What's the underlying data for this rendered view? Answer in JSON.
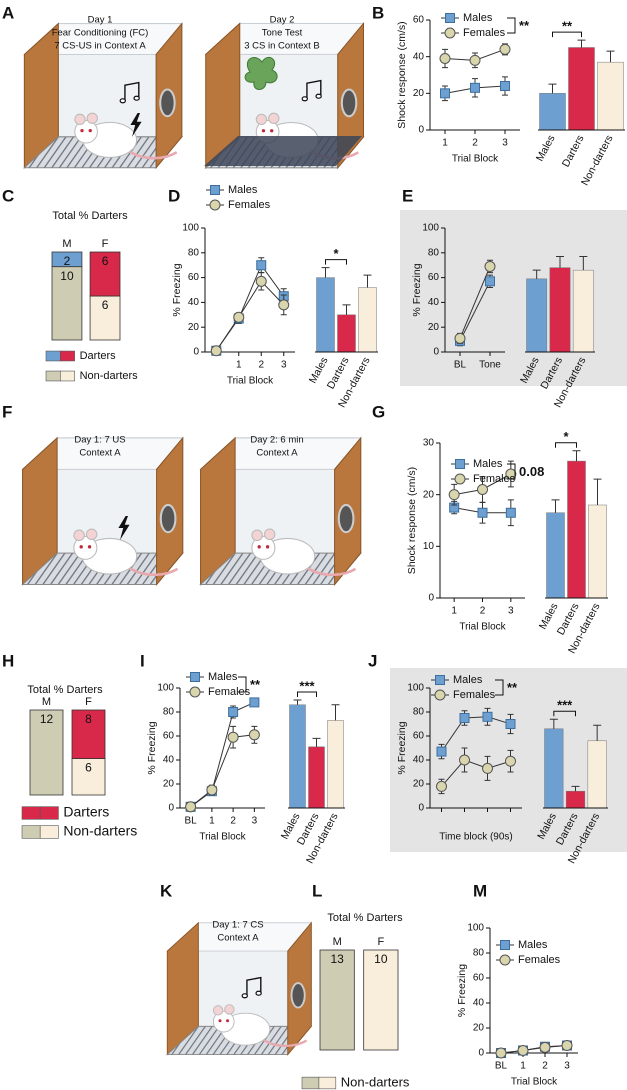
{
  "panel_labels": [
    "A",
    "B",
    "C",
    "D",
    "E",
    "F",
    "G",
    "H",
    "I",
    "J",
    "K",
    "L",
    "M"
  ],
  "schematics": [
    {
      "lines": [
        "Day 1",
        "Fear Conditioning (FC)",
        "7 CS-US in Context A"
      ]
    },
    {
      "lines": [
        "Day 2",
        "Tone Test",
        "3 CS in Context B"
      ]
    },
    {
      "lines": [
        "Day 1: 7 US",
        "Context A"
      ]
    },
    {
      "lines": [
        "Day 2: 6 min",
        "Context A"
      ]
    },
    {
      "lines": [
        "Day 1: 7 CS",
        "Context A"
      ]
    }
  ],
  "chart_data": [
    {
      "type": "line",
      "categories": [
        "1",
        "2",
        "3"
      ],
      "xlabel": "Trial Block",
      "ylabel": "Shock response (cm/s)",
      "ylim": [
        0,
        60
      ],
      "yticks": [
        0,
        20,
        40,
        60
      ],
      "series": [
        {
          "name": "Males",
          "color": "#6d9fd1",
          "marker": "square",
          "values": [
            20,
            23,
            24
          ],
          "errors": [
            4,
            5,
            5
          ]
        },
        {
          "name": "Females",
          "color": "#d9d6ae",
          "marker": "circle",
          "values": [
            39,
            38,
            44
          ],
          "errors": [
            5,
            4,
            3
          ]
        }
      ],
      "annotations": [
        {
          "text": "**"
        }
      ]
    },
    {
      "type": "bar",
      "categories": [
        "Males",
        "Darters",
        "Non-darters"
      ],
      "values": [
        20,
        45,
        37
      ],
      "errors": [
        5,
        4,
        6
      ],
      "colors": [
        "#6d9fd1",
        "#d8294a",
        "#f8eedb"
      ],
      "ylim": [
        0,
        60
      ],
      "annotations": [
        {
          "text": "**"
        }
      ]
    },
    {
      "type": "stacked_bar",
      "title": "Total % Darters",
      "categories": [
        "M",
        "F"
      ],
      "series": [
        {
          "name": "Darters",
          "colors": [
            "#6d9fd1",
            "#d8294a"
          ],
          "values": [
            2,
            6
          ]
        },
        {
          "name": "Non-darters",
          "colors": [
            "#cfccb4",
            "#f8eedb"
          ],
          "values": [
            10,
            6
          ]
        }
      ]
    },
    {
      "type": "line",
      "categories": [
        null,
        "1",
        "2",
        "3"
      ],
      "xlabel": "Trial Block",
      "ylabel": "% Freezing",
      "ylim": [
        0,
        100
      ],
      "yticks": [
        0,
        20,
        40,
        60,
        80,
        100
      ],
      "series": [
        {
          "name": "Males",
          "color": "#6d9fd1",
          "marker": "square",
          "values": [
            1,
            27,
            70,
            45
          ],
          "errors": [
            1,
            4,
            6,
            6
          ]
        },
        {
          "name": "Females",
          "color": "#d9d6ae",
          "marker": "circle",
          "values": [
            1,
            28,
            57,
            38
          ],
          "errors": [
            1,
            3,
            7,
            8
          ]
        }
      ]
    },
    {
      "type": "bar",
      "categories": [
        "Males",
        "Darters",
        "Non-darters"
      ],
      "values": [
        60,
        30,
        52
      ],
      "errors": [
        8,
        8,
        10
      ],
      "colors": [
        "#6d9fd1",
        "#d8294a",
        "#f8eedb"
      ],
      "ylim": [
        0,
        100
      ],
      "annotations": [
        {
          "text": "*"
        }
      ]
    },
    {
      "type": "line",
      "categories": [
        "BL",
        "Tone"
      ],
      "ylabel": "% Freezing",
      "ylim": [
        0,
        100
      ],
      "yticks": [
        0,
        20,
        40,
        60,
        80,
        100
      ],
      "series": [
        {
          "color": "#6d9fd1",
          "marker": "square",
          "values": [
            9,
            57
          ],
          "errors": [
            4,
            5
          ]
        },
        {
          "color": "#d9d6ae",
          "marker": "circle",
          "values": [
            11,
            69
          ],
          "errors": [
            4,
            5
          ]
        }
      ]
    },
    {
      "type": "bar",
      "categories": [
        "Males",
        "Darters",
        "Non-darters"
      ],
      "values": [
        59,
        68,
        66
      ],
      "errors": [
        7,
        9,
        11
      ],
      "colors": [
        "#6d9fd1",
        "#d8294a",
        "#f8eedb"
      ],
      "ylim": [
        0,
        100
      ]
    },
    {
      "type": "line",
      "categories": [
        "1",
        "2",
        "3"
      ],
      "xlabel": "Trial Block",
      "ylabel": "Shock response (cm/s)",
      "ylim": [
        0,
        30
      ],
      "yticks": [
        0,
        10,
        20,
        30
      ],
      "series": [
        {
          "name": "Males",
          "color": "#6d9fd1",
          "marker": "square",
          "values": [
            17.5,
            16.5,
            16.5
          ],
          "errors": [
            1.2,
            2,
            2.5
          ]
        },
        {
          "name": "Females",
          "color": "#d9d6ae",
          "marker": "circle",
          "values": [
            20,
            21,
            24
          ],
          "errors": [
            2,
            2.5,
            2.5
          ]
        }
      ],
      "annotations": [
        {
          "text": "0.08"
        }
      ]
    },
    {
      "type": "bar",
      "categories": [
        "Males",
        "Darters",
        "Non-darters"
      ],
      "values": [
        16.5,
        26.5,
        18
      ],
      "errors": [
        2.5,
        2,
        5
      ],
      "colors": [
        "#6d9fd1",
        "#d8294a",
        "#f8eedb"
      ],
      "ylim": [
        0,
        30
      ],
      "annotations": [
        {
          "text": "*"
        }
      ]
    },
    {
      "type": "stacked_bar",
      "title": "Total % Darters",
      "categories": [
        "M",
        "F"
      ],
      "series": [
        {
          "name": "Darters",
          "colors": [
            "#d8294a",
            "#d8294a"
          ],
          "values": [
            null,
            8
          ]
        },
        {
          "name": "Non-darters",
          "colors": [
            "#cfccb4",
            "#f8eedb"
          ],
          "values": [
            12,
            6
          ]
        }
      ]
    },
    {
      "type": "line",
      "categories": [
        "BL",
        "1",
        "2",
        "3"
      ],
      "xlabel": "Trial Block",
      "ylabel": "% Freezing",
      "ylim": [
        0,
        100
      ],
      "yticks": [
        0,
        20,
        40,
        60,
        80,
        100
      ],
      "series": [
        {
          "name": "Males",
          "color": "#6d9fd1",
          "marker": "square",
          "values": [
            1,
            14,
            80,
            88
          ],
          "errors": [
            1,
            3,
            5,
            2
          ]
        },
        {
          "name": "Females",
          "color": "#d9d6ae",
          "marker": "circle",
          "values": [
            1,
            15,
            59,
            61
          ],
          "errors": [
            1,
            4,
            9,
            7
          ]
        }
      ],
      "annotations": [
        {
          "text": "**"
        }
      ]
    },
    {
      "type": "bar",
      "categories": [
        "Males",
        "Darters",
        "Non-darters"
      ],
      "values": [
        86,
        51,
        73
      ],
      "errors": [
        4,
        7,
        13
      ],
      "colors": [
        "#6d9fd1",
        "#d8294a",
        "#f8eedb"
      ],
      "ylim": [
        0,
        100
      ],
      "annotations": [
        {
          "text": "***"
        }
      ]
    },
    {
      "type": "line",
      "categories": [
        null,
        null,
        null,
        null
      ],
      "xlabel": "Time block (90s)",
      "ylabel": "% Freezing",
      "ylim": [
        0,
        100
      ],
      "yticks": [
        0,
        20,
        40,
        60,
        80,
        100
      ],
      "series": [
        {
          "name": "Males",
          "color": "#6d9fd1",
          "marker": "square",
          "values": [
            47,
            75,
            76,
            70
          ],
          "errors": [
            6,
            6,
            7,
            8
          ]
        },
        {
          "name": "Females",
          "color": "#d9d6ae",
          "marker": "circle",
          "values": [
            18,
            40,
            33,
            39
          ],
          "errors": [
            6,
            10,
            10,
            9
          ]
        }
      ],
      "annotations": [
        {
          "text": "**"
        }
      ]
    },
    {
      "type": "bar",
      "categories": [
        "Males",
        "Darters",
        "Non-darters"
      ],
      "values": [
        66,
        14,
        56
      ],
      "errors": [
        8,
        4,
        13
      ],
      "colors": [
        "#6d9fd1",
        "#d8294a",
        "#f8eedb"
      ],
      "ylim": [
        0,
        100
      ],
      "annotations": [
        {
          "text": "***"
        }
      ]
    },
    {
      "type": "stacked_bar",
      "title": "Total % Darters",
      "categories": [
        "M",
        "F"
      ],
      "series": [
        {
          "name": "Non-darters",
          "colors": [
            "#cfccb4",
            "#f8eedb"
          ],
          "values": [
            13,
            10
          ]
        }
      ]
    },
    {
      "type": "line",
      "categories": [
        "BL",
        "1",
        "2",
        "3"
      ],
      "xlabel": "Trial Block",
      "ylabel": "% Freezing",
      "ylim": [
        0,
        100
      ],
      "yticks": [
        0,
        20,
        40,
        60,
        80,
        100
      ],
      "series": [
        {
          "name": "Males",
          "color": "#6d9fd1",
          "marker": "square",
          "values": [
            0,
            2,
            5,
            6
          ],
          "errors": [
            1,
            1,
            1.5,
            1.5
          ]
        },
        {
          "name": "Females",
          "color": "#d9d6ae",
          "marker": "circle",
          "values": [
            0,
            2,
            4.5,
            6
          ],
          "errors": [
            1,
            1,
            1.5,
            1.5
          ]
        }
      ]
    }
  ]
}
